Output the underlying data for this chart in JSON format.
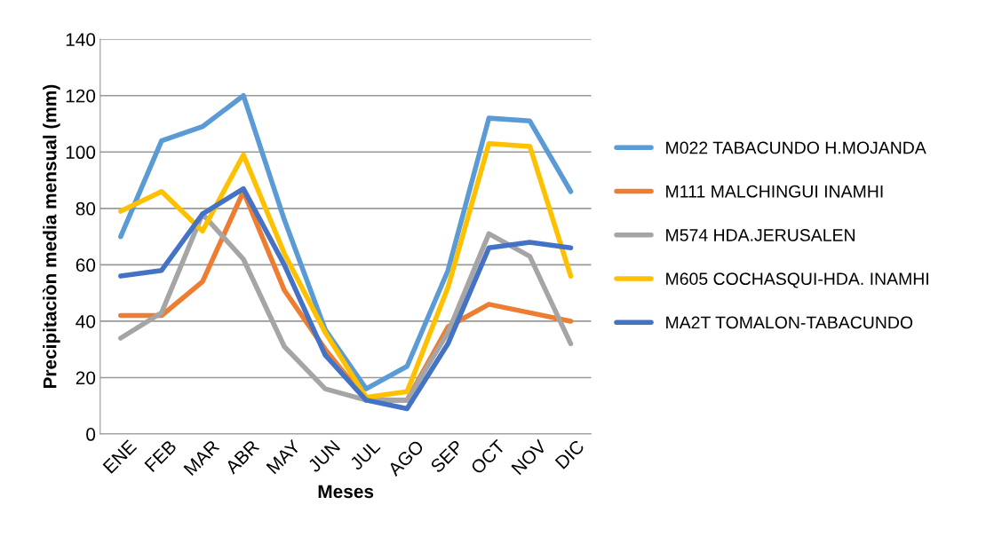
{
  "chart_data": {
    "type": "line",
    "xlabel": "Meses",
    "ylabel": "Precipitaciòn media mensual (mm)",
    "categories": [
      "ENE",
      "FEB",
      "MAR",
      "ABR",
      "MAY",
      "JUN",
      "JUL",
      "AGO",
      "SEP",
      "OCT",
      "NOV",
      "DIC"
    ],
    "series": [
      {
        "name": "M022 TABACUNDO H.MOJANDA",
        "color": "#5b9bd5",
        "values": [
          70,
          104,
          109,
          120,
          76,
          37,
          16,
          24,
          58,
          112,
          111,
          86
        ]
      },
      {
        "name": "M111 MALCHINGUI INAMHI",
        "color": "#ed7d31",
        "values": [
          42,
          42,
          54,
          86,
          51,
          30,
          12,
          12,
          38,
          46,
          43,
          40
        ]
      },
      {
        "name": "M574 HDA.JERUSALEN",
        "color": "#a5a5a5",
        "values": [
          34,
          43,
          78,
          62,
          31,
          16,
          12,
          12,
          36,
          71,
          63,
          32
        ]
      },
      {
        "name": "M605 COCHASQUI-HDA. INAMHI",
        "color": "#ffc000",
        "values": [
          79,
          86,
          72,
          99,
          64,
          36,
          13,
          15,
          52,
          103,
          102,
          56
        ]
      },
      {
        "name": "MA2T TOMALON-TABACUNDO",
        "color": "#4472c4",
        "values": [
          56,
          58,
          78,
          87,
          60,
          28,
          12,
          9,
          32,
          66,
          68,
          66
        ]
      }
    ],
    "ylim": [
      0,
      140
    ],
    "yticks": [
      0,
      20,
      40,
      60,
      80,
      100,
      120,
      140
    ],
    "grid": "y",
    "legend": "right",
    "marker": "none",
    "line_style": "solid"
  }
}
